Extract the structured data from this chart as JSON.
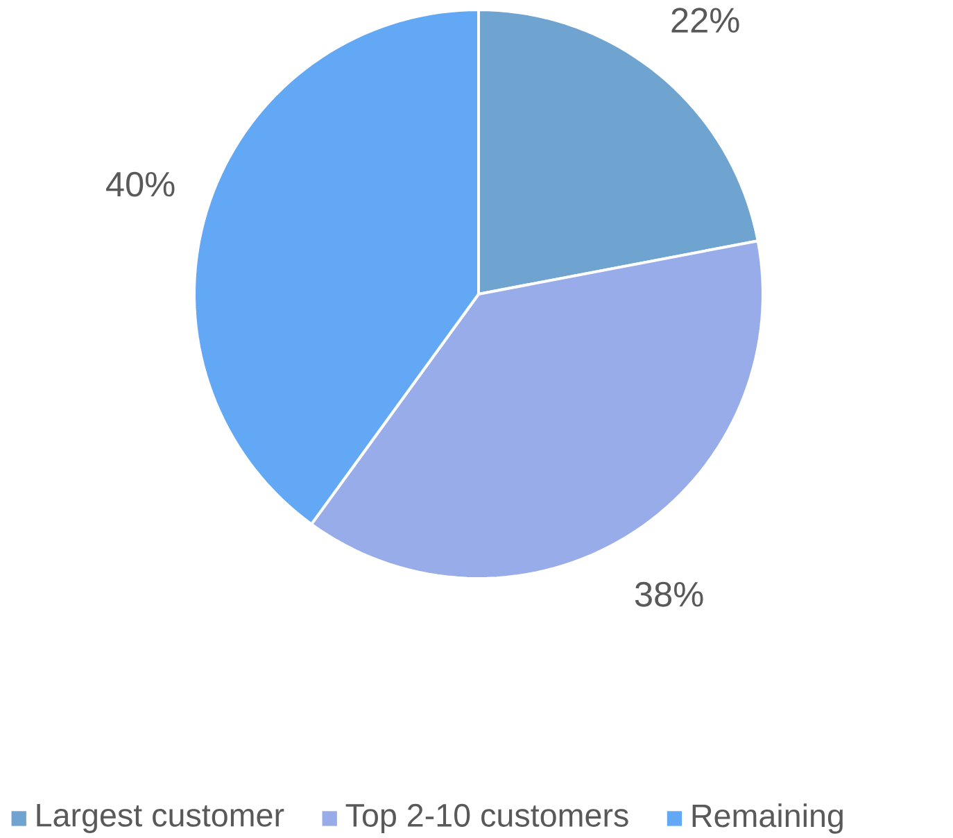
{
  "chart_data": {
    "type": "pie",
    "categories": [
      "Largest customer",
      "Top 2-10 customers",
      "Remaining"
    ],
    "values": [
      22,
      38,
      40
    ],
    "value_labels": [
      "22%",
      "38%",
      "40%"
    ],
    "colors": [
      "#6fa3d0",
      "#98acea",
      "#62a8f5"
    ],
    "legend": "bottom"
  }
}
